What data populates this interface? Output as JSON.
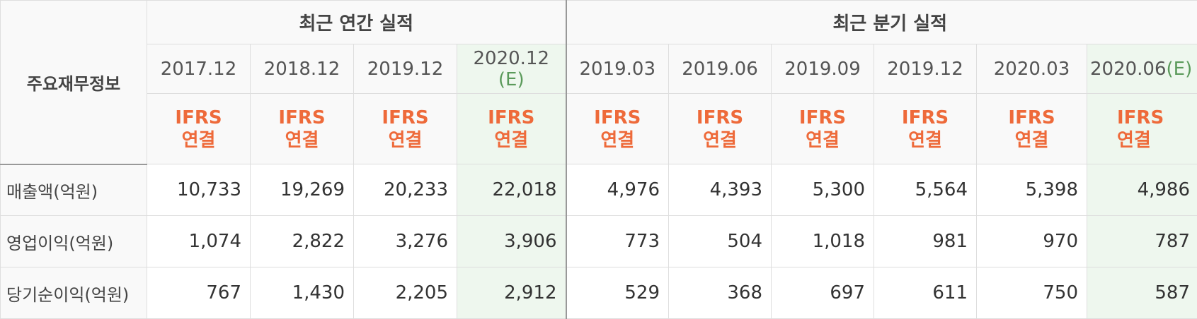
{
  "table": {
    "corner_label": "주요재무정보",
    "groups": {
      "annual": "최근 연간 실적",
      "quarterly": "최근 분기 실적"
    },
    "columns": [
      {
        "date": "2017.12",
        "sub": ""
      },
      {
        "date": "2018.12",
        "sub": ""
      },
      {
        "date": "2019.12",
        "sub": ""
      },
      {
        "date": "2020.12",
        "sub": "(E)"
      },
      {
        "date": "2019.03",
        "sub": ""
      },
      {
        "date": "2019.06",
        "sub": ""
      },
      {
        "date": "2019.09",
        "sub": ""
      },
      {
        "date": "2019.12",
        "sub": ""
      },
      {
        "date": "2020.03",
        "sub": ""
      },
      {
        "date": "2020.06",
        "sub": "(E)"
      }
    ],
    "ifrs_top": "IFRS",
    "ifrs_bottom": "연결",
    "rows": [
      {
        "label": "매출액(억원)",
        "values": [
          "10,733",
          "19,269",
          "20,233",
          "22,018",
          "4,976",
          "4,393",
          "5,300",
          "5,564",
          "5,398",
          "4,986"
        ]
      },
      {
        "label": "영업이익(억원)",
        "values": [
          "1,074",
          "2,822",
          "3,276",
          "3,906",
          "773",
          "504",
          "1,018",
          "981",
          "970",
          "787"
        ]
      },
      {
        "label": "당기순이익(억원)",
        "values": [
          "767",
          "1,430",
          "2,205",
          "2,912",
          "529",
          "368",
          "697",
          "611",
          "750",
          "587"
        ]
      }
    ]
  },
  "colors": {
    "ifrs_text": "#ee6a3a",
    "estimate_bg": "#eef7ee",
    "estimate_sub": "#5a9a5a"
  }
}
